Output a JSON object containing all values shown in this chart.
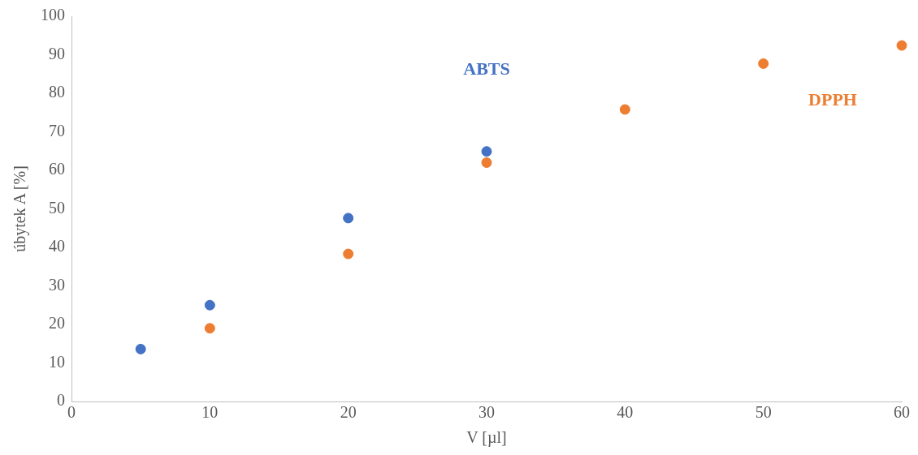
{
  "chart_data": {
    "type": "scatter",
    "xlabel": "V [µl]",
    "ylabel": "úbytek A [%]",
    "xlim": [
      0,
      60
    ],
    "xticks": [
      0,
      10,
      20,
      30,
      40,
      50,
      60
    ],
    "ylim": [
      0,
      100
    ],
    "yticks": [
      0,
      10,
      20,
      30,
      40,
      50,
      60,
      70,
      80,
      90,
      100
    ],
    "grid": false,
    "legend": false,
    "marker": "circle",
    "series": [
      {
        "name": "ABTS",
        "color": "#4472c4",
        "x": [
          5,
          10,
          20,
          30
        ],
        "values": [
          13.6,
          25.0,
          47.6,
          64.9
        ]
      },
      {
        "name": "DPPH",
        "color": "#ed7d31",
        "x": [
          10,
          20,
          30,
          40,
          50,
          60
        ],
        "values": [
          19.0,
          38.3,
          62.0,
          75.8,
          87.7,
          92.4
        ]
      }
    ]
  }
}
